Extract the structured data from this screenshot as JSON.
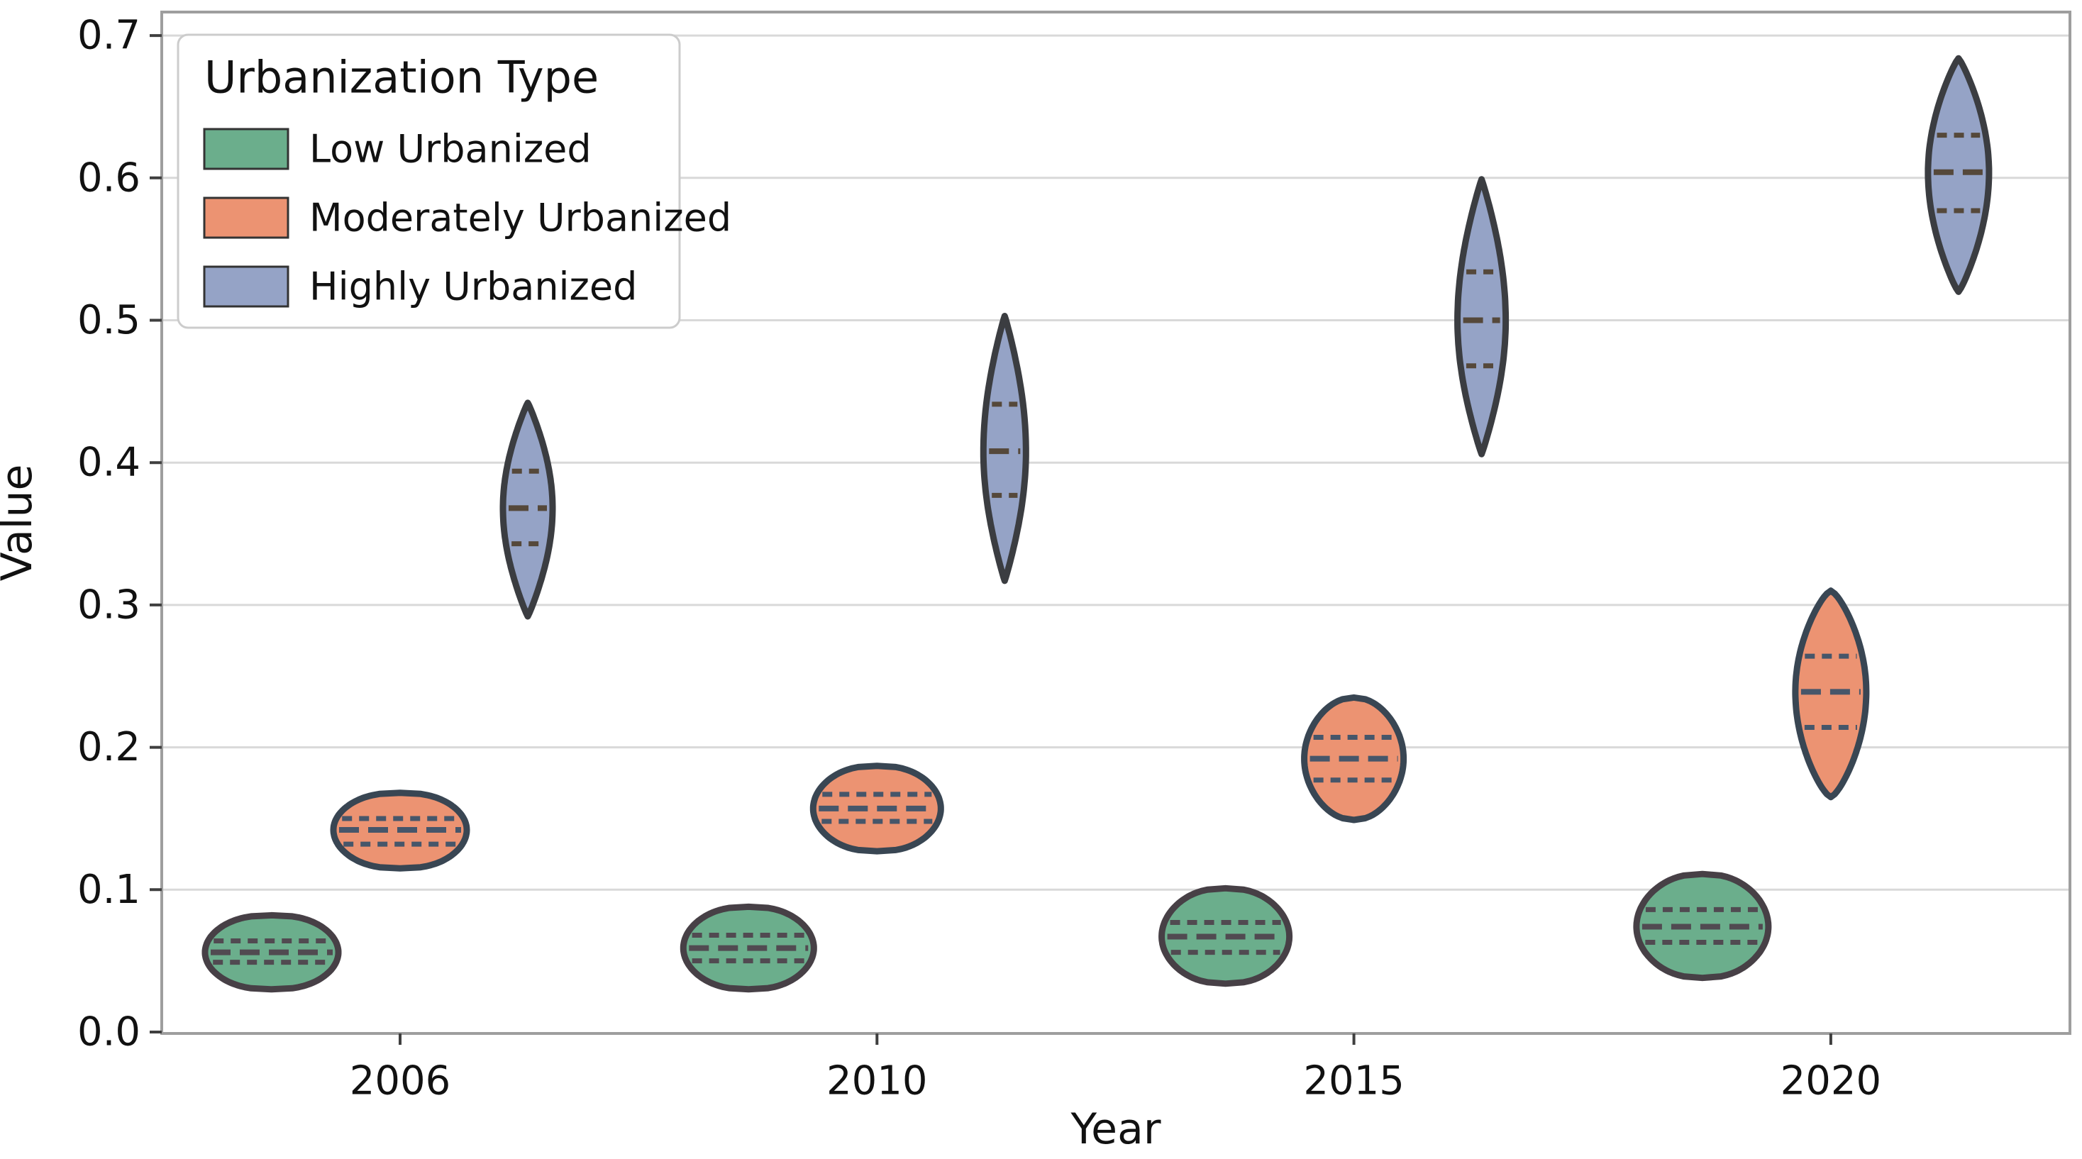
{
  "chart_data": {
    "type": "violin",
    "title": "",
    "xlabel": "Year",
    "ylabel": "Value",
    "ylim": [
      0.0,
      0.7
    ],
    "yticks": [
      "0.0",
      "0.1",
      "0.2",
      "0.3",
      "0.4",
      "0.5",
      "0.6",
      "0.7"
    ],
    "categories": [
      "2006",
      "2010",
      "2015",
      "2020"
    ],
    "grid": "horizontal",
    "legend": {
      "title": "Urbanization Type",
      "position": "upper-left",
      "entries": [
        "Low Urbanized",
        "Moderately Urbanized",
        "Highly Urbanized"
      ]
    },
    "series": [
      {
        "name": "Low Urbanized",
        "fill": "#6bae8c",
        "edge": "#474046",
        "line": "#514a51",
        "stats": [
          {
            "category": "2006",
            "min": 0.03,
            "q1": 0.049,
            "median": 0.056,
            "q3": 0.064,
            "max": 0.082,
            "halfwidth": 94
          },
          {
            "category": "2010",
            "min": 0.03,
            "q1": 0.05,
            "median": 0.059,
            "q3": 0.068,
            "max": 0.088,
            "halfwidth": 92
          },
          {
            "category": "2015",
            "min": 0.034,
            "q1": 0.056,
            "median": 0.067,
            "q3": 0.077,
            "max": 0.101,
            "halfwidth": 90
          },
          {
            "category": "2020",
            "min": 0.038,
            "q1": 0.063,
            "median": 0.074,
            "q3": 0.086,
            "max": 0.111,
            "halfwidth": 93
          }
        ]
      },
      {
        "name": "Moderately Urbanized",
        "fill": "#ec9372",
        "edge": "#394653",
        "line": "#46566a",
        "stats": [
          {
            "category": "2006",
            "min": 0.115,
            "q1": 0.132,
            "median": 0.142,
            "q3": 0.15,
            "max": 0.168,
            "halfwidth": 94
          },
          {
            "category": "2010",
            "min": 0.127,
            "q1": 0.148,
            "median": 0.157,
            "q3": 0.167,
            "max": 0.187,
            "halfwidth": 90
          },
          {
            "category": "2015",
            "min": 0.149,
            "q1": 0.177,
            "median": 0.192,
            "q3": 0.207,
            "max": 0.235,
            "halfwidth": 70
          },
          {
            "category": "2020",
            "min": 0.165,
            "q1": 0.214,
            "median": 0.239,
            "q3": 0.264,
            "max": 0.31,
            "halfwidth": 50
          }
        ]
      },
      {
        "name": "Highly Urbanized",
        "fill": "#95a3c6",
        "edge": "#3b3d41",
        "line": "#55483a",
        "stats": [
          {
            "category": "2006",
            "min": 0.292,
            "q1": 0.343,
            "median": 0.368,
            "q3": 0.394,
            "max": 0.442,
            "halfwidth": 35
          },
          {
            "category": "2010",
            "min": 0.317,
            "q1": 0.377,
            "median": 0.408,
            "q3": 0.441,
            "max": 0.503,
            "halfwidth": 30
          },
          {
            "category": "2015",
            "min": 0.406,
            "q1": 0.468,
            "median": 0.5,
            "q3": 0.534,
            "max": 0.599,
            "halfwidth": 34
          },
          {
            "category": "2020",
            "min": 0.52,
            "q1": 0.577,
            "median": 0.604,
            "q3": 0.63,
            "max": 0.684,
            "halfwidth": 43
          }
        ]
      }
    ]
  },
  "colors": {
    "background": "#ffffff",
    "grid": "#d9d9d9",
    "spine": "#9e9e9e",
    "tick": "#3f3f3f",
    "text": "#111111",
    "legend_border": "#cccccc"
  }
}
